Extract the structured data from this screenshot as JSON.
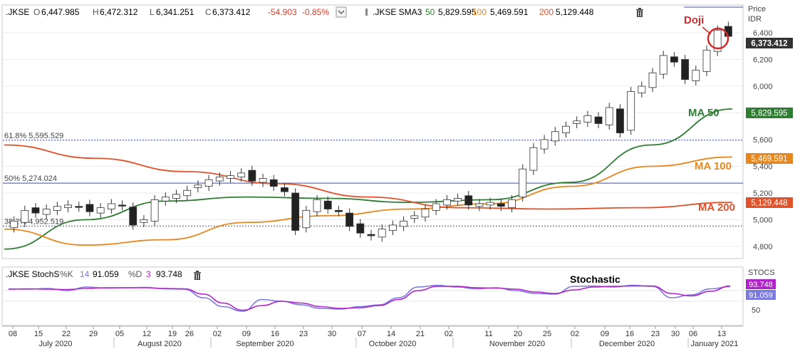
{
  "price_header": {
    "symbol": ".JKSE",
    "open_key": "O",
    "open": "6,447.985",
    "high_key": "H",
    "high": "6,472.312",
    "low_key": "L",
    "low": "6,341.251",
    "close_key": "C",
    "close": "6,373.412",
    "change": "-54.903",
    "change_pct": "-0.85%",
    "sma_label": ".JKSE SMA3",
    "sma50_key": "50",
    "sma50": "5,829.595",
    "sma100_key": "100",
    "sma100": "5,469.591",
    "sma200_key": "200",
    "sma200": "5,129.448"
  },
  "price_axis": {
    "title_1": "Price",
    "title_2": "IDR",
    "ticks": [
      "6,400",
      "6,200",
      "6,000",
      "5,800",
      "5,600",
      "5,400",
      "5,200",
      "5,000",
      "4,800"
    ],
    "current_tag": "6,373.412",
    "ma50_tag": "5,829.595",
    "ma100_tag": "5,469.591",
    "ma200_tag": "5,129.448"
  },
  "fib_levels": [
    {
      "label": "61.8%  5,595.529",
      "value": 5595.529
    },
    {
      "label": "50%    5,274.024",
      "value": 5274.024
    },
    {
      "label": "38.2%  4,952.519",
      "value": 4952.519
    }
  ],
  "annotations": {
    "doji": "Doji",
    "ma50": "MA 50",
    "ma100": "MA 100",
    "ma200": "MA 200",
    "stochastic": "Stochastic"
  },
  "stoch_header": {
    "label": ".JKSE StochS",
    "k_label": "%K",
    "k_param": "14",
    "k_value": "91.059",
    "d_label": "%D",
    "d_param": "3",
    "d_value": "93.748"
  },
  "stoch_axis": {
    "title": "STOCS",
    "d_tag": "93.748",
    "k_tag": "91.059",
    "tick_50": "50"
  },
  "x_axis": {
    "day_ticks": [
      "08",
      "15",
      "22",
      "29",
      "05",
      "12",
      "19",
      "26",
      "02",
      "09",
      "16",
      "23",
      "30",
      "07",
      "14",
      "21",
      "02",
      "11",
      "20",
      "25",
      "02",
      "09",
      "16",
      "23",
      "30",
      "06",
      "13"
    ],
    "months": [
      "July 2020",
      "August 2020",
      "September 2020",
      "October 2020",
      "November 2020",
      "December 2020",
      "January 2021"
    ]
  },
  "colors": {
    "up_candle": "#ffffff",
    "down_candle": "#222222",
    "ma50": "#2e7d32",
    "ma100": "#e8871e",
    "ma200": "#e0522a",
    "fib_line": "#3a4cc0",
    "stoch_k": "#7a7ae0",
    "stoch_d": "#b023c8",
    "negative": "#d83a2a",
    "annotation_red": "#d42a2a"
  },
  "chart_data": {
    "type": "candlestick",
    "title": ".JKSE",
    "ylabel": "Price IDR",
    "ylim": [
      4700,
      6520
    ],
    "series": [
      {
        "name": "Close",
        "values": [
          4990,
          5070,
          5050,
          5080,
          5100,
          5110,
          5095,
          5060,
          5090,
          5120,
          5105,
          4960,
          5000,
          5150,
          5170,
          5190,
          5220,
          5260,
          5300,
          5320,
          5330,
          5350,
          5290,
          5310,
          5250,
          5210,
          4920,
          5070,
          5150,
          5080,
          5060,
          4950,
          4900,
          4880,
          4930,
          4960,
          4990,
          5030,
          5080,
          5120,
          5150,
          5160,
          5110,
          5120,
          5130,
          5100,
          5150,
          5380,
          5540,
          5600,
          5660,
          5700,
          5740,
          5780,
          5720,
          5840,
          5650,
          5960,
          6000,
          6100,
          6230,
          6180,
          6050,
          6120,
          6270,
          6420,
          6373
        ]
      },
      {
        "name": "SMA 50",
        "values": [
          4780,
          5000,
          5140,
          5170,
          5160,
          5130,
          5150,
          5280,
          5560,
          5830
        ]
      },
      {
        "name": "SMA 100",
        "values": [
          4930,
          4810,
          4850,
          4980,
          5030,
          5080,
          5120,
          5250,
          5400,
          5470
        ]
      },
      {
        "name": "SMA 200",
        "values": [
          5560,
          5460,
          5360,
          5270,
          5170,
          5090,
          5080,
          5090,
          5130
        ]
      }
    ],
    "stochastic": {
      "k_param": 14,
      "d_param": 3,
      "ylabel": "STOCS",
      "series": [
        {
          "name": "%K",
          "values": [
            85,
            84,
            86,
            80,
            90,
            87,
            88,
            89,
            85,
            84,
            60,
            35,
            22,
            55,
            50,
            40,
            30,
            28,
            35,
            40,
            60,
            90,
            95,
            90,
            85,
            88,
            80,
            72,
            70,
            92,
            93,
            90,
            95,
            92,
            60,
            68,
            85,
            91
          ]
        },
        {
          "name": "%D",
          "values": [
            84,
            85,
            84,
            83,
            86,
            88,
            88,
            88,
            86,
            85,
            70,
            45,
            25,
            38,
            50,
            45,
            35,
            30,
            32,
            38,
            55,
            80,
            92,
            92,
            88,
            87,
            84,
            76,
            72,
            82,
            90,
            92,
            93,
            93,
            72,
            65,
            78,
            93
          ]
        }
      ]
    }
  }
}
